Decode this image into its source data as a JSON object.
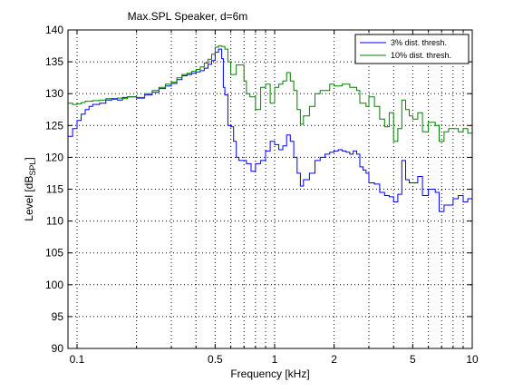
{
  "chart_data": {
    "type": "line",
    "title": "Max.SPL Speaker, d=6m",
    "xlabel": "Frequency [kHz]",
    "ylabel": {
      "main": "Level [dB",
      "sub": "SPL",
      "close": "]"
    },
    "x_scale": "log",
    "xlim": [
      0.09,
      10
    ],
    "ylim": [
      90,
      140
    ],
    "x_ticks": [
      0.1,
      0.5,
      1,
      2,
      5,
      10
    ],
    "x_tick_labels": [
      "0.1",
      "0.5",
      "1",
      "2",
      "5",
      "10"
    ],
    "x_minor_gridlines": [
      0.2,
      0.3,
      0.4,
      0.6,
      0.7,
      0.8,
      0.9,
      3,
      4,
      6,
      7,
      8,
      9
    ],
    "y_ticks": [
      90,
      95,
      100,
      105,
      110,
      115,
      120,
      125,
      130,
      135,
      140
    ],
    "y_tick_labels": [
      "90",
      "95",
      "100",
      "105",
      "110",
      "115",
      "120",
      "125",
      "130",
      "135",
      "140"
    ],
    "grid": true,
    "legend_position": "top-right",
    "series": [
      {
        "name": "3% dist. thresh.",
        "color": "#0000ff",
        "points": [
          [
            0.09,
            123.3
          ],
          [
            0.095,
            124.5
          ],
          [
            0.1,
            125.8
          ],
          [
            0.105,
            126.8
          ],
          [
            0.11,
            127.5
          ],
          [
            0.115,
            128.0
          ],
          [
            0.12,
            128.3
          ],
          [
            0.13,
            128.5
          ],
          [
            0.14,
            129.0
          ],
          [
            0.15,
            129.2
          ],
          [
            0.16,
            129.0
          ],
          [
            0.17,
            129.4
          ],
          [
            0.18,
            129.5
          ],
          [
            0.2,
            129.3
          ],
          [
            0.22,
            129.8
          ],
          [
            0.24,
            130.2
          ],
          [
            0.26,
            130.8
          ],
          [
            0.28,
            131.2
          ],
          [
            0.3,
            131.6
          ],
          [
            0.32,
            132.2
          ],
          [
            0.34,
            132.8
          ],
          [
            0.36,
            133.0
          ],
          [
            0.38,
            133.2
          ],
          [
            0.4,
            133.4
          ],
          [
            0.42,
            133.6
          ],
          [
            0.44,
            134.0
          ],
          [
            0.46,
            134.6
          ],
          [
            0.48,
            135.2
          ],
          [
            0.5,
            136.5
          ],
          [
            0.52,
            137.0
          ],
          [
            0.54,
            135.5
          ],
          [
            0.55,
            131.0
          ],
          [
            0.56,
            129.8
          ],
          [
            0.58,
            125.0
          ],
          [
            0.6,
            124.8
          ],
          [
            0.62,
            122.5
          ],
          [
            0.64,
            120.0
          ],
          [
            0.66,
            119.5
          ],
          [
            0.7,
            119.5
          ],
          [
            0.72,
            119.0
          ],
          [
            0.76,
            117.8
          ],
          [
            0.8,
            119.0
          ],
          [
            0.85,
            119.5
          ],
          [
            0.9,
            121.0
          ],
          [
            0.95,
            122.5
          ],
          [
            1.0,
            122.0
          ],
          [
            1.05,
            121.2
          ],
          [
            1.1,
            121.8
          ],
          [
            1.15,
            123.5
          ],
          [
            1.2,
            122.5
          ],
          [
            1.25,
            120.0
          ],
          [
            1.3,
            117.5
          ],
          [
            1.35,
            115.5
          ],
          [
            1.4,
            116.5
          ],
          [
            1.5,
            117.5
          ],
          [
            1.6,
            119.5
          ],
          [
            1.7,
            120.0
          ],
          [
            1.8,
            120.5
          ],
          [
            1.9,
            120.8
          ],
          [
            2.0,
            121.0
          ],
          [
            2.1,
            121.2
          ],
          [
            2.2,
            121.0
          ],
          [
            2.3,
            120.8
          ],
          [
            2.4,
            120.5
          ],
          [
            2.5,
            121.0
          ],
          [
            2.6,
            120.5
          ],
          [
            2.7,
            118.5
          ],
          [
            2.8,
            118.0
          ],
          [
            2.9,
            117.5
          ],
          [
            3.0,
            116.0
          ],
          [
            3.2,
            115.8
          ],
          [
            3.4,
            114.5
          ],
          [
            3.6,
            114.0
          ],
          [
            3.8,
            113.8
          ],
          [
            4.0,
            113.0
          ],
          [
            4.2,
            114.2
          ],
          [
            4.4,
            119.5
          ],
          [
            4.6,
            116.5
          ],
          [
            4.8,
            116.0
          ],
          [
            5.0,
            116.0
          ],
          [
            5.3,
            117.0
          ],
          [
            5.6,
            114.0
          ],
          [
            6.0,
            115.0
          ],
          [
            6.5,
            114.5
          ],
          [
            6.8,
            111.5
          ],
          [
            7.2,
            112.5
          ],
          [
            7.6,
            112.5
          ],
          [
            8.0,
            113.5
          ],
          [
            8.5,
            114.0
          ],
          [
            9.0,
            113.0
          ],
          [
            9.5,
            113.5
          ],
          [
            10.0,
            113.0
          ]
        ]
      },
      {
        "name": "10% dist. thresh.",
        "color": "#008000",
        "points": [
          [
            0.09,
            128.5
          ],
          [
            0.095,
            128.3
          ],
          [
            0.1,
            128.4
          ],
          [
            0.105,
            128.6
          ],
          [
            0.11,
            128.8
          ],
          [
            0.12,
            128.9
          ],
          [
            0.13,
            129.0
          ],
          [
            0.14,
            129.2
          ],
          [
            0.15,
            129.1
          ],
          [
            0.16,
            129.3
          ],
          [
            0.17,
            129.2
          ],
          [
            0.18,
            129.5
          ],
          [
            0.2,
            129.4
          ],
          [
            0.22,
            130.0
          ],
          [
            0.24,
            130.5
          ],
          [
            0.26,
            131.0
          ],
          [
            0.28,
            131.5
          ],
          [
            0.3,
            131.8
          ],
          [
            0.32,
            132.5
          ],
          [
            0.34,
            133.0
          ],
          [
            0.36,
            133.2
          ],
          [
            0.38,
            133.5
          ],
          [
            0.4,
            133.8
          ],
          [
            0.42,
            134.2
          ],
          [
            0.44,
            134.8
          ],
          [
            0.46,
            135.4
          ],
          [
            0.48,
            136.2
          ],
          [
            0.5,
            137.3
          ],
          [
            0.52,
            137.5
          ],
          [
            0.54,
            137.4
          ],
          [
            0.56,
            137.0
          ],
          [
            0.58,
            135.0
          ],
          [
            0.6,
            133.0
          ],
          [
            0.62,
            133.0
          ],
          [
            0.64,
            134.5
          ],
          [
            0.66,
            134.5
          ],
          [
            0.7,
            132.0
          ],
          [
            0.72,
            130.0
          ],
          [
            0.75,
            129.5
          ],
          [
            0.8,
            127.5
          ],
          [
            0.85,
            131.0
          ],
          [
            0.9,
            131.5
          ],
          [
            0.95,
            128.5
          ],
          [
            1.0,
            131.0
          ],
          [
            1.05,
            131.5
          ],
          [
            1.1,
            132.0
          ],
          [
            1.15,
            133.3
          ],
          [
            1.2,
            132.0
          ],
          [
            1.25,
            130.5
          ],
          [
            1.3,
            127.5
          ],
          [
            1.35,
            125.2
          ],
          [
            1.4,
            126.5
          ],
          [
            1.5,
            128.0
          ],
          [
            1.6,
            130.0
          ],
          [
            1.7,
            130.5
          ],
          [
            1.8,
            130.5
          ],
          [
            1.9,
            131.5
          ],
          [
            2.0,
            131.2
          ],
          [
            2.2,
            131.5
          ],
          [
            2.4,
            131.0
          ],
          [
            2.6,
            130.5
          ],
          [
            2.7,
            128.5
          ],
          [
            2.9,
            128.0
          ],
          [
            3.0,
            129.5
          ],
          [
            3.2,
            128.0
          ],
          [
            3.4,
            126.0
          ],
          [
            3.6,
            124.8
          ],
          [
            3.8,
            127.0
          ],
          [
            4.0,
            122.5
          ],
          [
            4.2,
            124.5
          ],
          [
            4.4,
            129.0
          ],
          [
            4.6,
            127.5
          ],
          [
            4.8,
            126.5
          ],
          [
            5.0,
            126.0
          ],
          [
            5.3,
            127.0
          ],
          [
            5.6,
            124.0
          ],
          [
            6.0,
            125.5
          ],
          [
            6.5,
            125.0
          ],
          [
            6.8,
            122.5
          ],
          [
            7.2,
            124.0
          ],
          [
            7.6,
            124.5
          ],
          [
            8.0,
            124.5
          ],
          [
            8.5,
            124.0
          ],
          [
            9.0,
            124.5
          ],
          [
            9.5,
            123.8
          ],
          [
            10.0,
            124.5
          ]
        ]
      }
    ]
  }
}
